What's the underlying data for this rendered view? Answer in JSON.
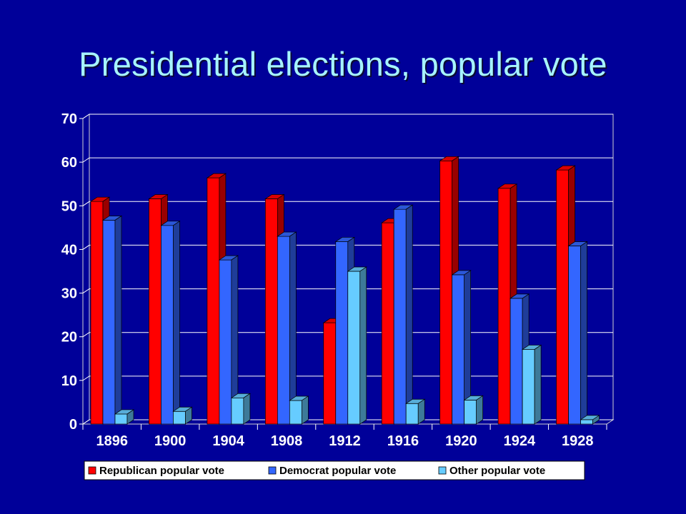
{
  "slide": {
    "title": "Presidential elections, popular vote"
  },
  "chart_data": {
    "type": "bar",
    "categories": [
      "1896",
      "1900",
      "1904",
      "1908",
      "1912",
      "1916",
      "1920",
      "1924",
      "1928"
    ],
    "series": [
      {
        "name": "Republican popular vote",
        "color": "#ff0000",
        "values": [
          51.0,
          51.6,
          56.4,
          51.6,
          23.2,
          46.1,
          60.3,
          54.0,
          58.2
        ]
      },
      {
        "name": "Democrat popular vote",
        "color": "#3366ff",
        "values": [
          46.7,
          45.5,
          37.6,
          43.0,
          41.8,
          49.2,
          34.2,
          28.8,
          40.8
        ]
      },
      {
        "name": "Other popular vote",
        "color": "#66ccff",
        "values": [
          2.3,
          2.9,
          6.0,
          5.4,
          35.0,
          4.7,
          5.5,
          17.1,
          1.0
        ]
      }
    ],
    "ylim": [
      0,
      70
    ],
    "yticks": [
      0,
      10,
      20,
      30,
      40,
      50,
      60,
      70
    ],
    "grid": true,
    "legend_position": "bottom"
  }
}
